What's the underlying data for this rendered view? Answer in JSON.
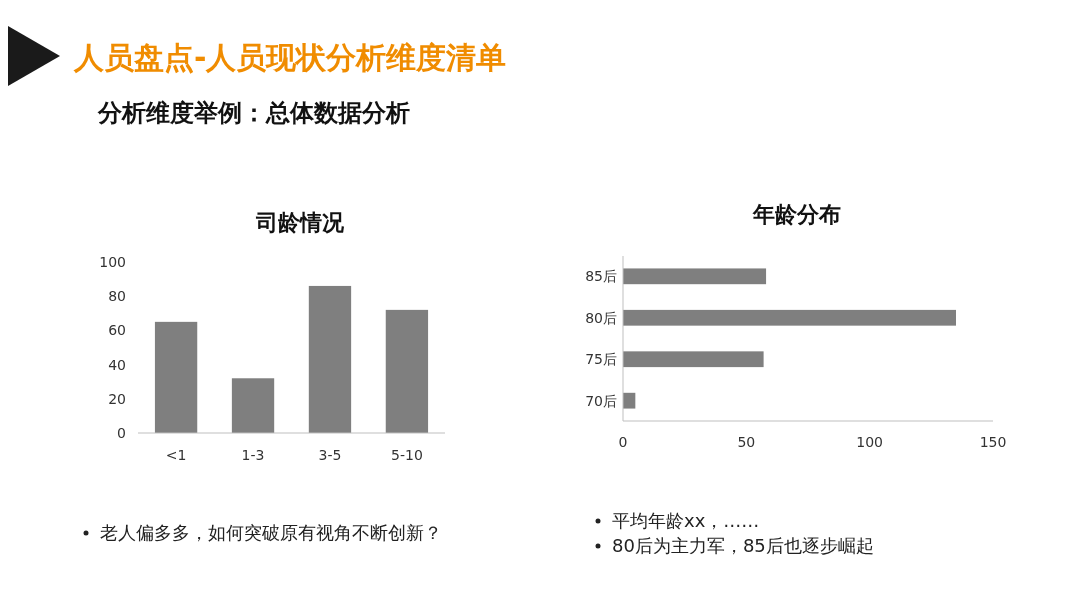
{
  "chart_data": [
    {
      "type": "other",
      "title": "人员盘点-人员现状分析维度清单",
      "subtitle": "分析维度举例：总体数据分析"
    },
    {
      "type": "bar",
      "title": "司龄情况",
      "categories": [
        "<1",
        "1-3",
        "3-5",
        "5-10"
      ],
      "values": [
        65,
        32,
        86,
        72
      ],
      "color": "#7f7f7f",
      "ylim": [
        0,
        100
      ],
      "yticks": [
        0,
        20,
        40,
        60,
        80,
        100
      ],
      "grid": false,
      "annotations": [
        "老人偏多多，如何突破原有视角不断创新？"
      ]
    },
    {
      "type": "bar",
      "orientation": "horizontal",
      "title": "年龄分布",
      "categories": [
        "85后",
        "80后",
        "75后",
        "70后"
      ],
      "values": [
        58,
        135,
        57,
        5
      ],
      "color": "#7f7f7f",
      "xlim": [
        0,
        150
      ],
      "xticks": [
        0,
        50,
        100,
        150
      ],
      "grid": false,
      "annotations": [
        "平均年龄xx，……",
        "80后为主力军，85后也逐步崛起"
      ]
    }
  ]
}
